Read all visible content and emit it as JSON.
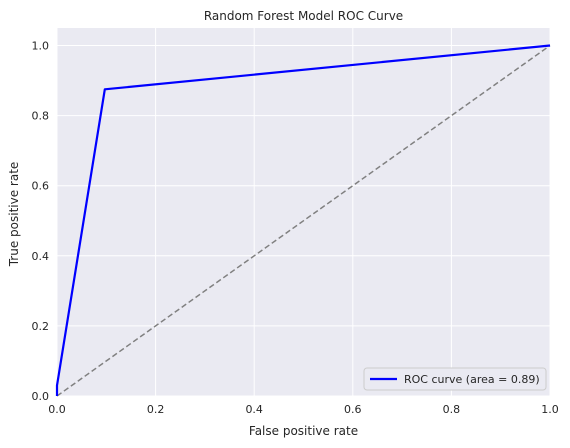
{
  "chart_data": {
    "type": "line",
    "title": "Random Forest Model ROC Curve",
    "xlabel": "False positive rate",
    "ylabel": "True positive rate",
    "xlim": [
      0,
      1
    ],
    "ylim": [
      0,
      1.05
    ],
    "x_ticks": [
      "0.0",
      "0.2",
      "0.4",
      "0.6",
      "0.8",
      "1.0"
    ],
    "y_ticks": [
      "0.0",
      "0.2",
      "0.4",
      "0.6",
      "0.8",
      "1.0"
    ],
    "grid": true,
    "legend_position": "lower-right",
    "background_color": "#eaeaf2",
    "series": [
      {
        "name": "ROC curve (area =  0.89)",
        "color": "#0000ff",
        "style": "solid",
        "x": [
          0.0,
          0.0,
          0.097,
          1.0
        ],
        "y": [
          0.0,
          0.03,
          0.875,
          1.0
        ]
      },
      {
        "color": "#808080",
        "style": "dashed",
        "x": [
          0.0,
          1.0
        ],
        "y": [
          0.0,
          1.0
        ]
      }
    ]
  }
}
